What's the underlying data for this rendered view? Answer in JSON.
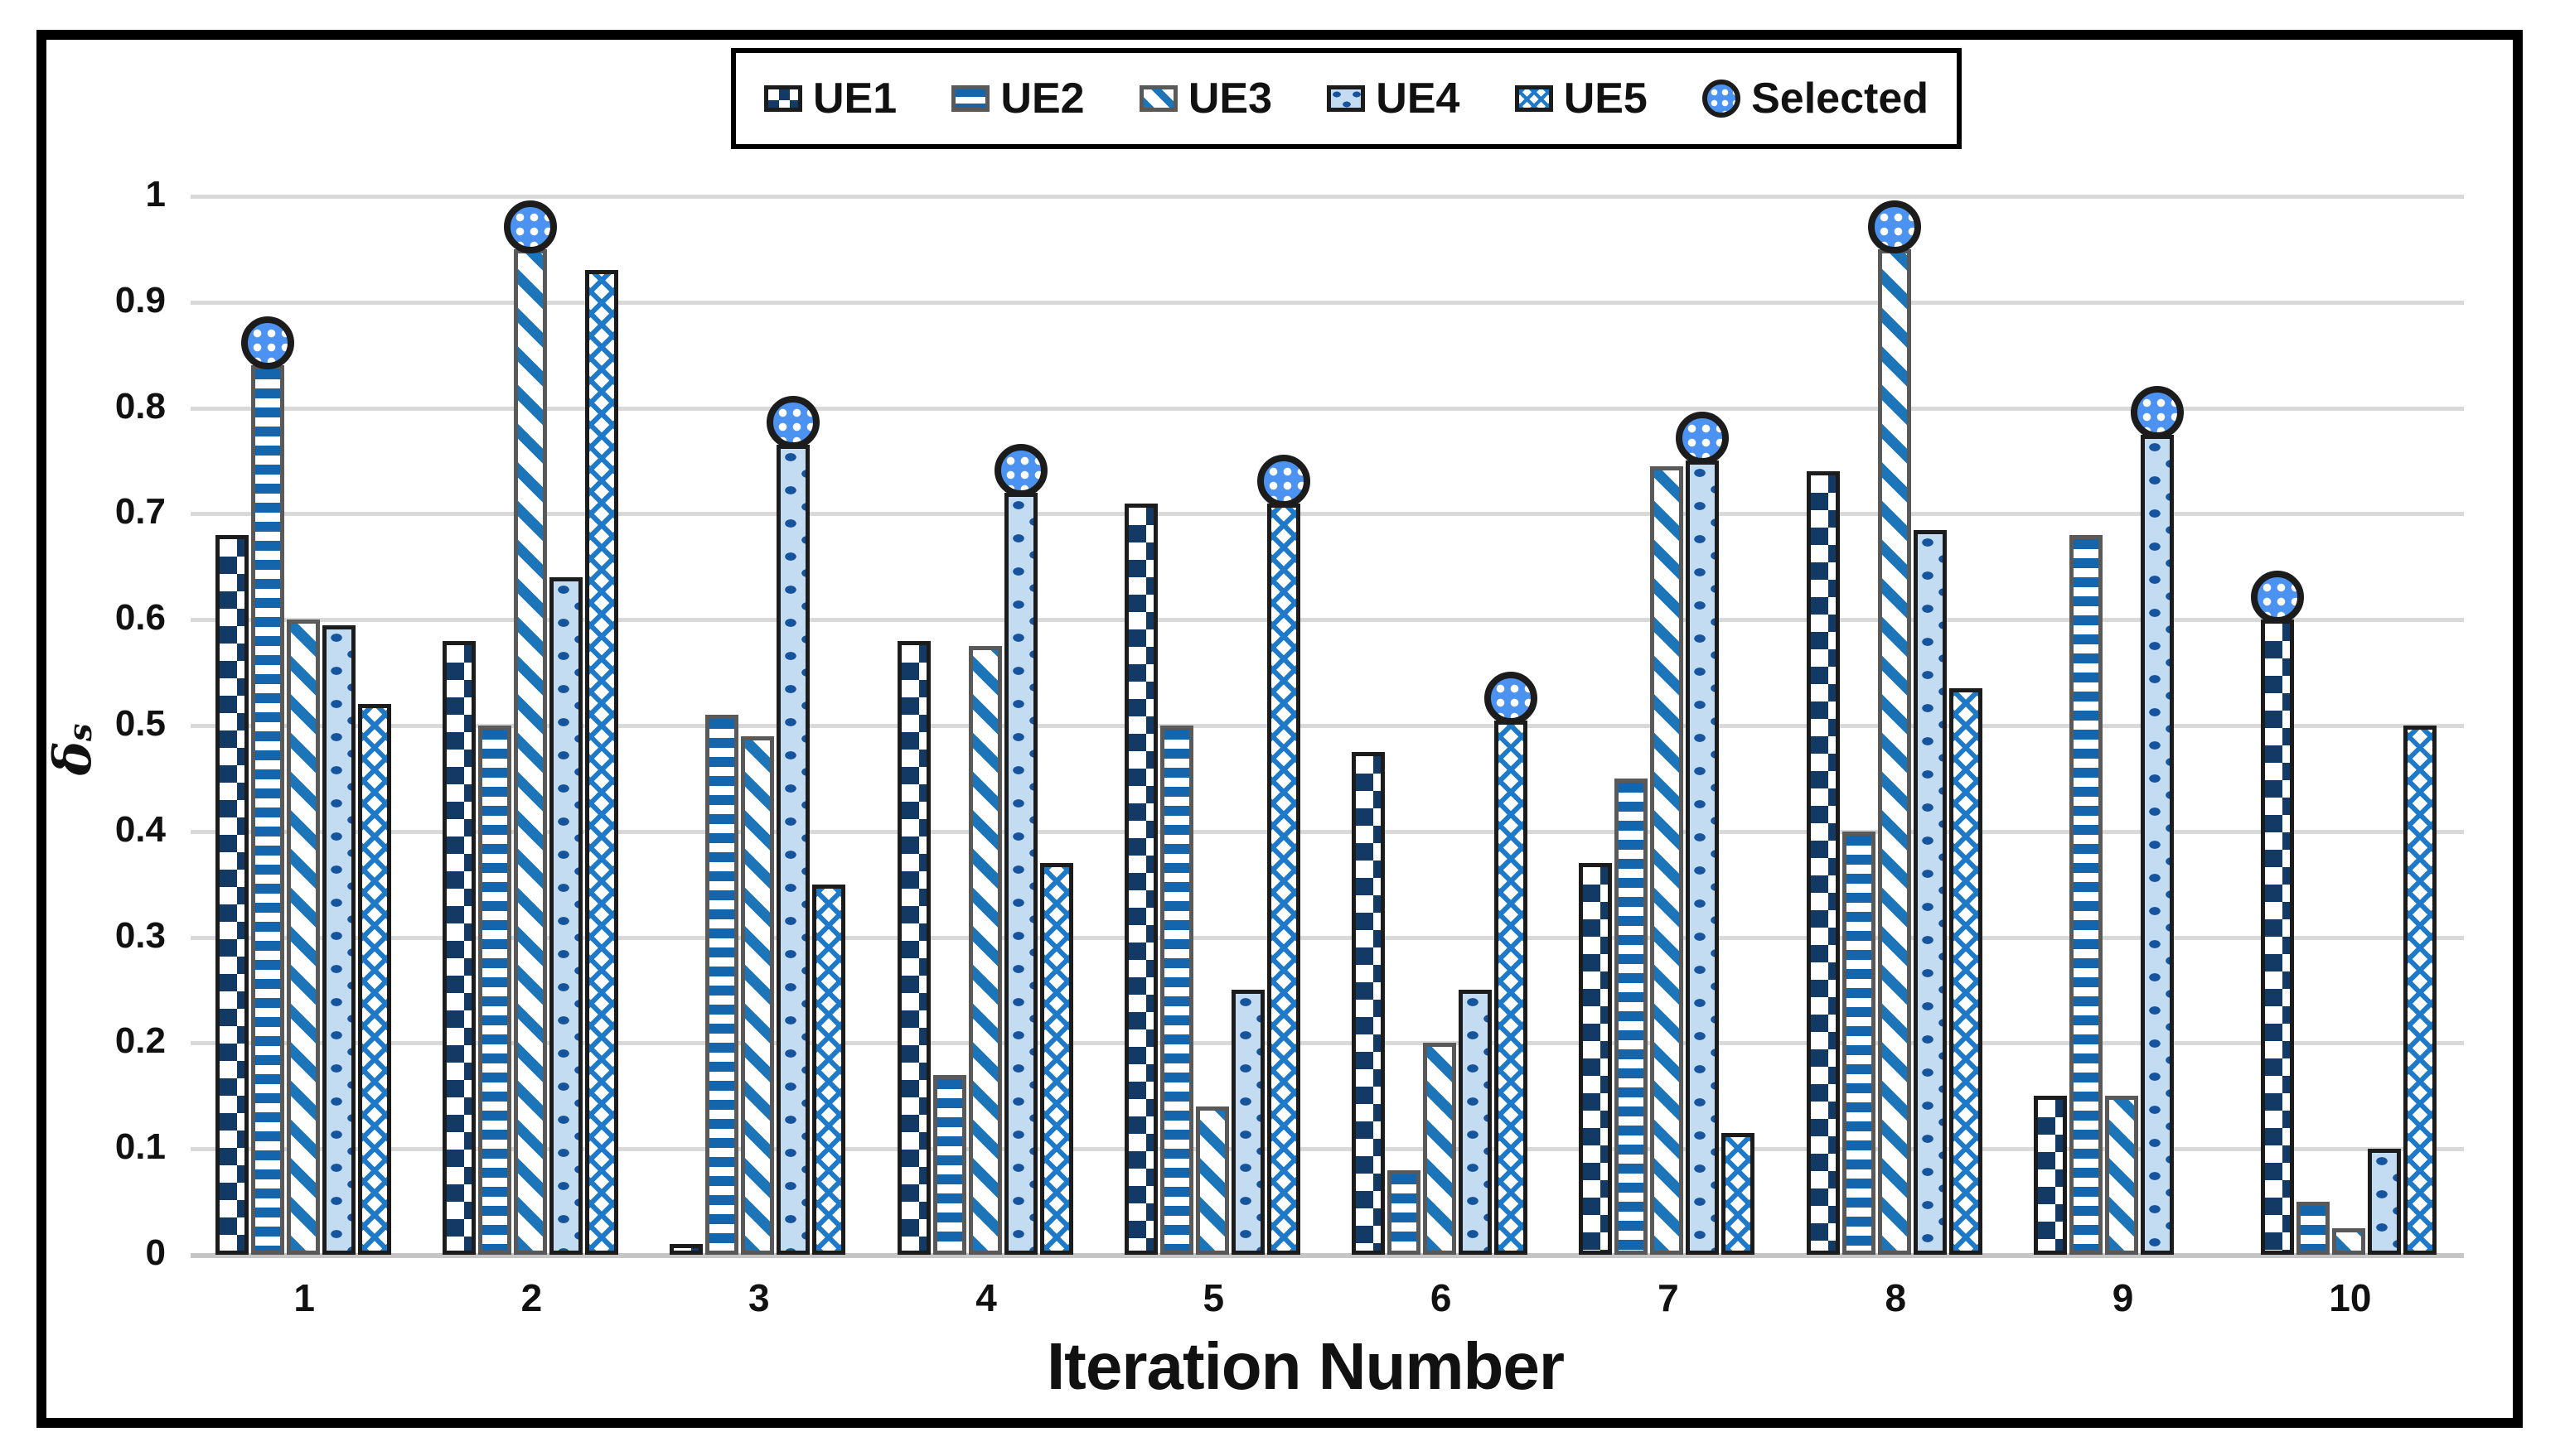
{
  "y_axis": {
    "label_main": "δ",
    "label_sub": "s",
    "ticks": [
      "1",
      "0.9",
      "0.8",
      "0.7",
      "0.6",
      "0.5",
      "0.4",
      "0.3",
      "0.2",
      "0.1",
      "0"
    ]
  },
  "x_axis": {
    "title": "Iteration Number",
    "ticks": [
      "1",
      "2",
      "3",
      "4",
      "5",
      "6",
      "7",
      "8",
      "9",
      "10"
    ]
  },
  "legend": {
    "items": [
      {
        "label": "UE1",
        "pattern": "checker",
        "outline": "black"
      },
      {
        "label": "UE2",
        "pattern": "hstripe",
        "outline": "gray"
      },
      {
        "label": "UE3",
        "pattern": "diag",
        "outline": "gray"
      },
      {
        "label": "UE4",
        "pattern": "dots",
        "outline": "black"
      },
      {
        "label": "UE5",
        "pattern": "hatch",
        "outline": "black"
      },
      {
        "label": "Selected",
        "pattern": "circle",
        "outline": "black"
      }
    ]
  },
  "colors": {
    "checker_navy": "#123A64",
    "hstripe_blue": "#1565AC",
    "diag_blue": "#1B75B8",
    "dots_fill": "#C3DCF1",
    "dots_dash": "#17549E",
    "hatch_blue": "#1E7AC8",
    "marker_fill": "#4C93F1",
    "outline_black": "#1C1C1C",
    "outline_gray": "#595959",
    "gridline": "#D9D9D9"
  },
  "chart_data": {
    "type": "bar",
    "title": "",
    "xlabel": "Iteration Number",
    "ylabel": "δs",
    "ylim": [
      0,
      1
    ],
    "ytick_step": 0.1,
    "grid": "horizontal",
    "legend_position": "top-center",
    "categories": [
      1,
      2,
      3,
      4,
      5,
      6,
      7,
      8,
      9,
      10
    ],
    "series": [
      {
        "name": "UE1",
        "pattern": "checker",
        "outline": "black",
        "values": [
          0.68,
          0.58,
          0.01,
          0.58,
          0.71,
          0.475,
          0.37,
          0.74,
          0.15,
          0.6
        ]
      },
      {
        "name": "UE2",
        "pattern": "hstripe",
        "outline": "gray",
        "values": [
          0.84,
          0.5,
          0.51,
          0.17,
          0.5,
          0.08,
          0.45,
          0.4,
          0.68,
          0.05
        ]
      },
      {
        "name": "UE3",
        "pattern": "diag",
        "outline": "gray",
        "values": [
          0.6,
          0.95,
          0.49,
          0.575,
          0.14,
          0.2,
          0.745,
          0.95,
          0.15,
          0.025
        ]
      },
      {
        "name": "UE4",
        "pattern": "dots",
        "outline": "black",
        "values": [
          0.595,
          0.64,
          0.765,
          0.72,
          0.25,
          0.25,
          0.75,
          0.685,
          0.775,
          0.1
        ]
      },
      {
        "name": "UE5",
        "pattern": "hatch",
        "outline": "black",
        "values": [
          0.52,
          0.93,
          0.35,
          0.37,
          0.71,
          0.505,
          0.115,
          0.535,
          0,
          0.5
        ]
      }
    ],
    "selected": {
      "series_per_iteration": [
        "UE2",
        "UE3",
        "UE4",
        "UE4",
        "UE5",
        "UE5",
        "UE4",
        "UE3",
        "UE4",
        "UE1"
      ],
      "marker": "blue circle with white dot grid, sits on top of the selected bar"
    }
  }
}
